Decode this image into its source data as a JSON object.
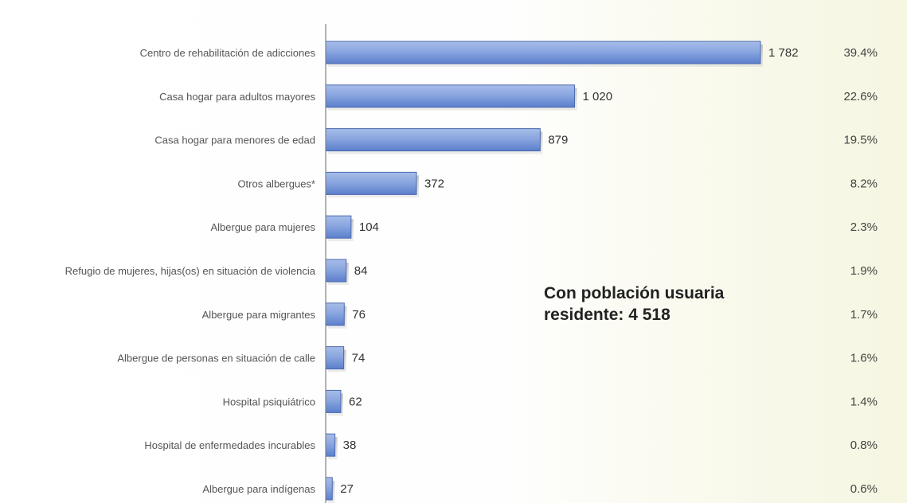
{
  "annotation": {
    "line1": "Con población usuaria",
    "line2": "residente: 4 518"
  },
  "colors": {
    "bar_fill_top": "#a7bde9",
    "bar_fill_bottom": "#5b7fcc",
    "bar_stroke": "#4a68ad",
    "axis": "#7f7f7f"
  },
  "chart_data": {
    "type": "bar",
    "orientation": "horizontal",
    "categories": [
      "Centro de rehabilitación de adicciones",
      "Casa hogar para adultos mayores",
      "Casa hogar para menores de edad",
      "Otros albergues*",
      "Albergue para mujeres",
      "Refugio de mujeres, hijas(os) en situación de violencia",
      "Albergue para migrantes",
      "Albergue de personas en situación de calle",
      "Hospital psiquiátrico",
      "Hospital de enfermedades incurables",
      "Albergue para indígenas"
    ],
    "values": [
      1782,
      1020,
      879,
      372,
      104,
      84,
      76,
      74,
      62,
      38,
      27
    ],
    "value_labels": [
      "1 782",
      "1 020",
      "879",
      "372",
      "104",
      "84",
      "76",
      "74",
      "62",
      "38",
      "27"
    ],
    "percent_labels": [
      "39.4%",
      "22.6%",
      "19.5%",
      "8.2%",
      "2.3%",
      "1.9%",
      "1.7%",
      "1.6%",
      "1.4%",
      "0.8%",
      "0.6%"
    ],
    "xlim": [
      0,
      1782
    ],
    "grid": false,
    "legend": "none"
  }
}
